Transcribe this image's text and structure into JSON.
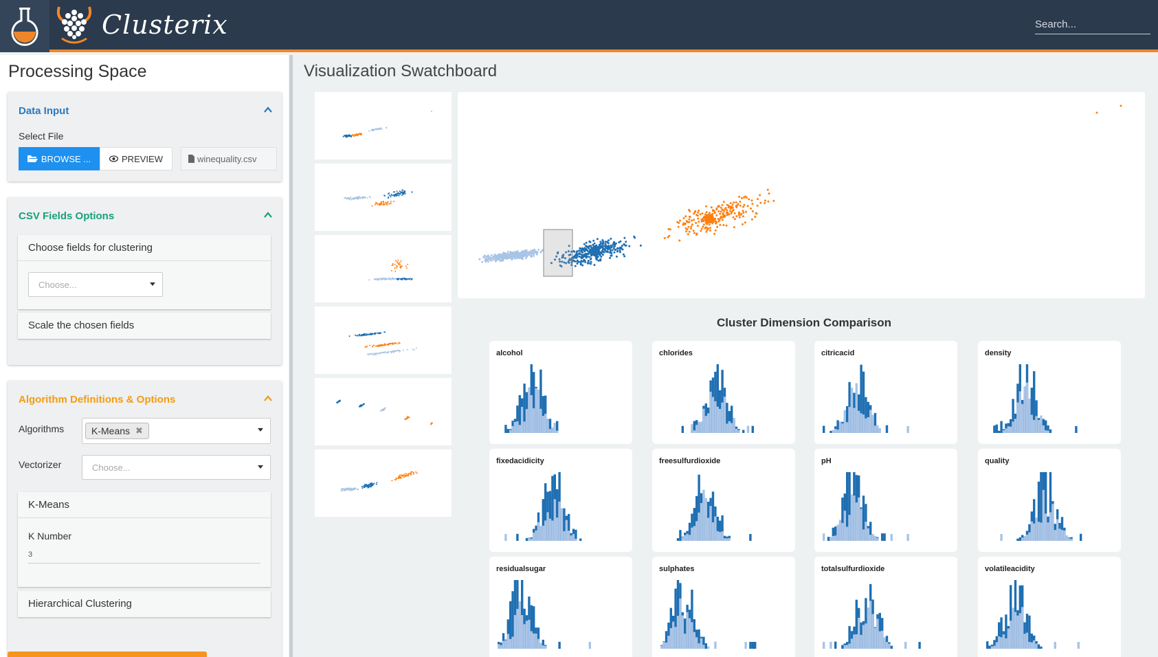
{
  "app": {
    "brand": "Clusterix"
  },
  "search": {
    "placeholder": "Search..."
  },
  "left_panel": {
    "title": "Processing Space",
    "data_input": {
      "title": "Data Input",
      "select_file_label": "Select File",
      "browse_label": "BROWSE ...",
      "preview_label": "PREVIEW",
      "file_name": "winequality.csv"
    },
    "csv_fields": {
      "title": "CSV Fields Options",
      "choose_fields_label": "Choose fields for clustering",
      "choose_placeholder": "Choose...",
      "scale_label": "Scale the chosen fields"
    },
    "algorithms": {
      "title": "Algorithm Definitions & Options",
      "algorithms_label": "Algorithms",
      "selected_algorithm": "K-Means",
      "vectorizer_label": "Vectorizer",
      "vectorizer_placeholder": "Choose...",
      "kmeans": {
        "title": "K-Means",
        "k_label": "K Number",
        "k_value": "3"
      },
      "hierarchical_label": "Hierarchical Clustering"
    }
  },
  "visualization": {
    "title": "Visualization Swatchboard",
    "comparison_title": "Cluster Dimension Comparison",
    "dimensions": [
      "alcohol",
      "chlorides",
      "citricacid",
      "density",
      "fixedacidicity",
      "freesulfurdioxide",
      "pH",
      "quality",
      "residualsugar",
      "sulphates",
      "totalsulfurdioxide",
      "volatileacidity"
    ]
  },
  "colors": {
    "header_bg": "#2b3a4d",
    "accent_orange": "#f0862a",
    "cluster_dark_blue": "#1f6fb2",
    "cluster_light_blue": "#a9c4e6",
    "cluster_orange": "#ff7f0e",
    "data_input_title": "#2a7abf",
    "csv_title": "#1aa07a",
    "algo_title": "#f39c12",
    "button_blue": "#1e90ef"
  },
  "icons": [
    "flask-logo-icon",
    "viking-logo-icon",
    "folder-open-icon",
    "eye-icon",
    "file-icon",
    "chevron-up-icon",
    "caret-down-icon",
    "remove-tag-icon"
  ]
}
